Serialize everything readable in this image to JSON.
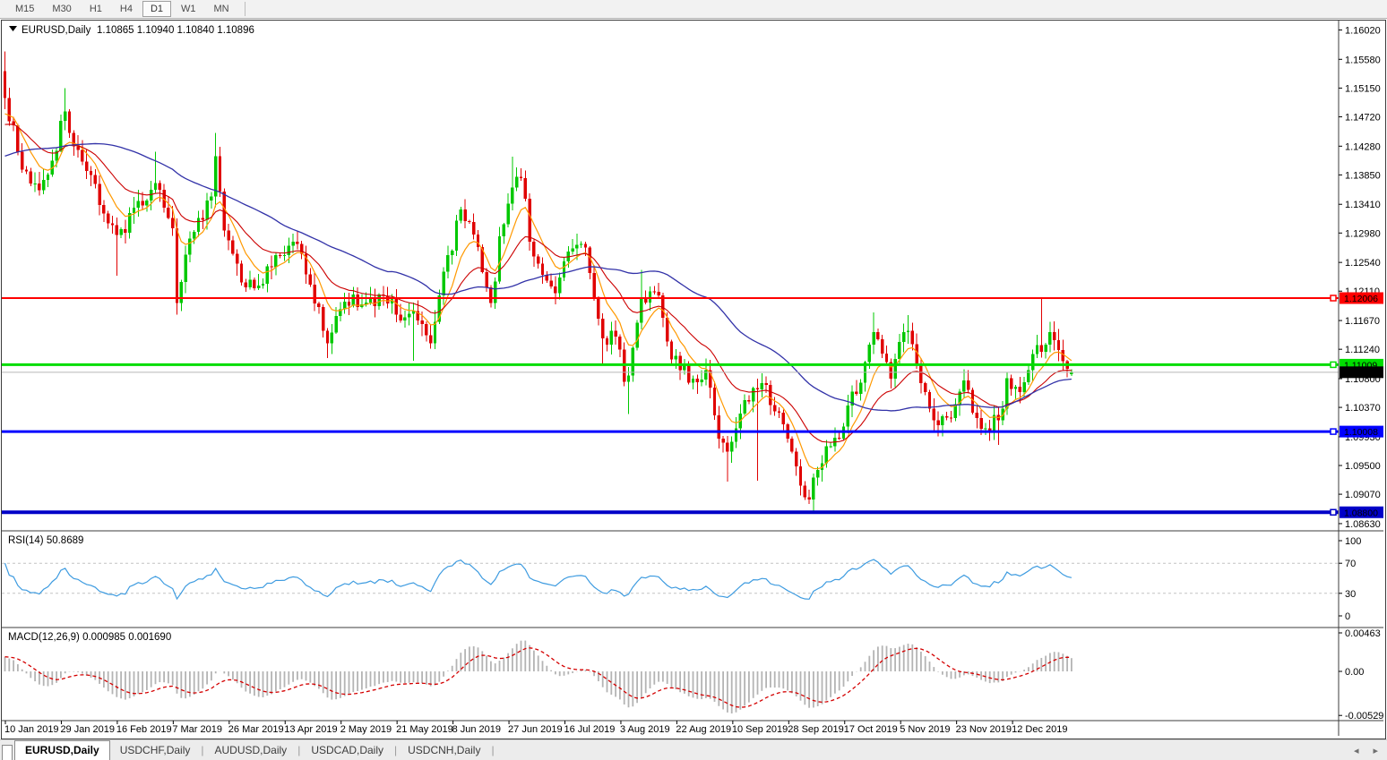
{
  "toolbar": {
    "timeframes": [
      "M15",
      "M30",
      "H1",
      "H4",
      "D1",
      "W1",
      "MN"
    ],
    "active": "D1"
  },
  "chart": {
    "symbol_period": "EURUSD,Daily",
    "ohlc": "1.10865 1.10940 1.10840 1.10896"
  },
  "icons": {
    "symbol_dropdown": "dropdown-triangle",
    "tab_scroll_left": "◂",
    "tab_scroll_right": "▸"
  },
  "price_axis": {
    "ticks": [
      "1.16020",
      "1.15580",
      "1.15150",
      "1.14720",
      "1.14280",
      "1.13850",
      "1.13410",
      "1.12980",
      "1.12540",
      "1.12110",
      "1.11670",
      "1.11240",
      "1.10800",
      "1.10370",
      "1.09930",
      "1.09500",
      "1.09070",
      "1.08630"
    ]
  },
  "date_axis": [
    "10 Jan 2019",
    "29 Jan 2019",
    "16 Feb 2019",
    "7 Mar 2019",
    "26 Mar 2019",
    "13 Apr 2019",
    "2 May 2019",
    "21 May 2019",
    "8 Jun 2019",
    "27 Jun 2019",
    "16 Jul 2019",
    "3 Aug 2019",
    "22 Aug 2019",
    "10 Sep 2019",
    "28 Sep 2019",
    "17 Oct 2019",
    "5 Nov 2019",
    "23 Nov 2019",
    "12 Dec 2019"
  ],
  "rsi_panel": {
    "label": "RSI(14) 50.8689",
    "axis": [
      {
        "v": 100,
        "label": "100"
      },
      {
        "v": 70,
        "label": "70"
      },
      {
        "v": 30,
        "label": "30"
      },
      {
        "v": 0,
        "label": "0"
      }
    ],
    "dashed_levels": [
      70,
      30
    ],
    "line_color": "#3d9be0",
    "dash_color": "#c4c4c4"
  },
  "macd_panel": {
    "label": "MACD(12,26,9) 0.000985 0.001690",
    "axis": [
      {
        "v": 0.00463,
        "label": "0.00463"
      },
      {
        "v": 0,
        "label": "0.00"
      },
      {
        "v": -0.005299,
        "label": "-0.005299"
      }
    ],
    "hist_color": "#b4b4b4",
    "signal_color": "#d40000"
  },
  "tabs": [
    {
      "label": "EURUSD,Daily",
      "active": true
    },
    {
      "label": "USDCHF,Daily",
      "active": false
    },
    {
      "label": "AUDUSD,Daily",
      "active": false
    },
    {
      "label": "USDCAD,Daily",
      "active": false
    },
    {
      "label": "USDCNH,Daily",
      "active": false
    }
  ],
  "chart_data": {
    "type": "candlestick",
    "symbol": "EURUSD",
    "timeframe": "Daily",
    "bars": 249,
    "up_color": "#00c800",
    "down_color": "#e00000",
    "price_range": {
      "min": 1.0861,
      "max": 1.1612
    },
    "last_candle": {
      "open": 1.10865,
      "high": 1.1094,
      "low": 1.1084,
      "close": 1.10896
    },
    "anchors": [
      [
        0,
        1.15
      ],
      [
        1,
        1.1465
      ],
      [
        3,
        1.142
      ],
      [
        5,
        1.139
      ],
      [
        8,
        1.1362
      ],
      [
        11,
        1.1406
      ],
      [
        14,
        1.148
      ],
      [
        15,
        1.1448
      ],
      [
        18,
        1.1405
      ],
      [
        23,
        1.1327
      ],
      [
        26,
        1.1295
      ],
      [
        30,
        1.1336
      ],
      [
        35,
        1.1373
      ],
      [
        37,
        1.1336
      ],
      [
        39,
        1.1305
      ],
      [
        40,
        1.1193
      ],
      [
        43,
        1.129
      ],
      [
        48,
        1.1353
      ],
      [
        49,
        1.1413
      ],
      [
        51,
        1.1302
      ],
      [
        55,
        1.1224
      ],
      [
        60,
        1.1222
      ],
      [
        63,
        1.1265
      ],
      [
        68,
        1.1282
      ],
      [
        70,
        1.1236
      ],
      [
        75,
        1.1133
      ],
      [
        76,
        1.1149
      ],
      [
        79,
        1.1195
      ],
      [
        84,
        1.1194
      ],
      [
        88,
        1.1204
      ],
      [
        92,
        1.1167
      ],
      [
        95,
        1.1181
      ],
      [
        99,
        1.1133
      ],
      [
        102,
        1.124
      ],
      [
        106,
        1.1333
      ],
      [
        110,
        1.1277
      ],
      [
        113,
        1.1193
      ],
      [
        115,
        1.1293
      ],
      [
        118,
        1.1366
      ],
      [
        120,
        1.138
      ],
      [
        122,
        1.1285
      ],
      [
        126,
        1.1227
      ],
      [
        128,
        1.1208
      ],
      [
        131,
        1.127
      ],
      [
        135,
        1.1276
      ],
      [
        139,
        1.114
      ],
      [
        142,
        1.1143
      ],
      [
        144,
        1.1075
      ],
      [
        145,
        1.1085
      ],
      [
        148,
        1.12
      ],
      [
        151,
        1.121
      ],
      [
        153,
        1.1171
      ],
      [
        155,
        1.1109
      ],
      [
        158,
        1.11
      ],
      [
        160,
        1.108
      ],
      [
        163,
        1.1093
      ],
      [
        166,
        1.099
      ],
      [
        168,
        1.0971
      ],
      [
        172,
        1.1048
      ],
      [
        175,
        1.1064
      ],
      [
        176,
        1.1073
      ],
      [
        179,
        1.1031
      ],
      [
        182,
        1.099
      ],
      [
        185,
        1.092
      ],
      [
        187,
        1.0899
      ],
      [
        188,
        1.0932
      ],
      [
        191,
        1.0979
      ],
      [
        194,
        1.099
      ],
      [
        196,
        1.104
      ],
      [
        199,
        1.1074
      ],
      [
        202,
        1.115
      ],
      [
        205,
        1.1105
      ],
      [
        206,
        1.108
      ],
      [
        209,
        1.115
      ],
      [
        210,
        1.1152
      ],
      [
        213,
        1.1073
      ],
      [
        216,
        1.1018
      ],
      [
        220,
        1.1021
      ],
      [
        223,
        1.1077
      ],
      [
        226,
        1.1021
      ],
      [
        229,
        1.1001
      ],
      [
        231,
        1.1018
      ],
      [
        233,
        1.1081
      ],
      [
        236,
        1.106
      ],
      [
        238,
        1.1093
      ],
      [
        240,
        1.113
      ],
      [
        241,
        1.112
      ],
      [
        243,
        1.115
      ],
      [
        245,
        1.1123
      ],
      [
        247,
        1.1095
      ],
      [
        248,
        1.10896
      ]
    ],
    "wick_highs": {
      "0": 1.157,
      "14": 1.1515,
      "35": 1.142,
      "49": 1.1448,
      "118": 1.1412,
      "120": 1.1395,
      "148": 1.1243,
      "202": 1.1179,
      "210": 1.1175,
      "241": 1.1199,
      "248": 1.1094
    },
    "wick_lows": {
      "26": 1.1234,
      "40": 1.1176,
      "75": 1.1111,
      "95": 1.1107,
      "139": 1.1101,
      "145": 1.1027,
      "168": 1.0926,
      "175": 1.0927,
      "185": 1.0905,
      "188": 1.0879,
      "216": 1.1002,
      "231": 1.0981,
      "248": 1.1084
    },
    "open_overrides": {
      "0": 1.154,
      "248": 1.10865
    },
    "moving_averages": [
      {
        "type": "ema",
        "period": 8,
        "color": "#ff9900",
        "width": 1.2
      },
      {
        "type": "ema",
        "period": 21,
        "color": "#cc0000",
        "width": 1.1
      },
      {
        "type": "sma",
        "period": 50,
        "color": "#3232a8",
        "width": 1.3
      }
    ],
    "levels": [
      {
        "price": 1.12006,
        "label": "1.12006",
        "color": "#ff0000",
        "width": 2,
        "text_color": "#ffffff"
      },
      {
        "price": 1.11009,
        "label": "1.11009",
        "color": "#00dd00",
        "width": 3,
        "text_color": "#000000"
      },
      {
        "price": 1.10008,
        "label": "1.10008",
        "color": "#0000ff",
        "width": 3,
        "text_color": "#ffffff"
      },
      {
        "price": 1.088,
        "label": "1.08800",
        "color": "#0000c8",
        "width": 4,
        "text_color": "#ffffff"
      }
    ],
    "current": {
      "value": 1.10896,
      "label": "1.10896",
      "line_color": "#b8b8b8",
      "badge_bg": "#000000",
      "text_color": "#ffffff"
    },
    "indicators": {
      "rsi": {
        "period": 14,
        "current": 50.8689,
        "overbought": 70,
        "oversold": 30
      },
      "macd": {
        "fast": 12,
        "slow": 26,
        "signal": 9,
        "current_main": 0.000985,
        "current_signal": 0.00169,
        "axis_max": 0.00463,
        "axis_min": -0.005299
      }
    }
  }
}
